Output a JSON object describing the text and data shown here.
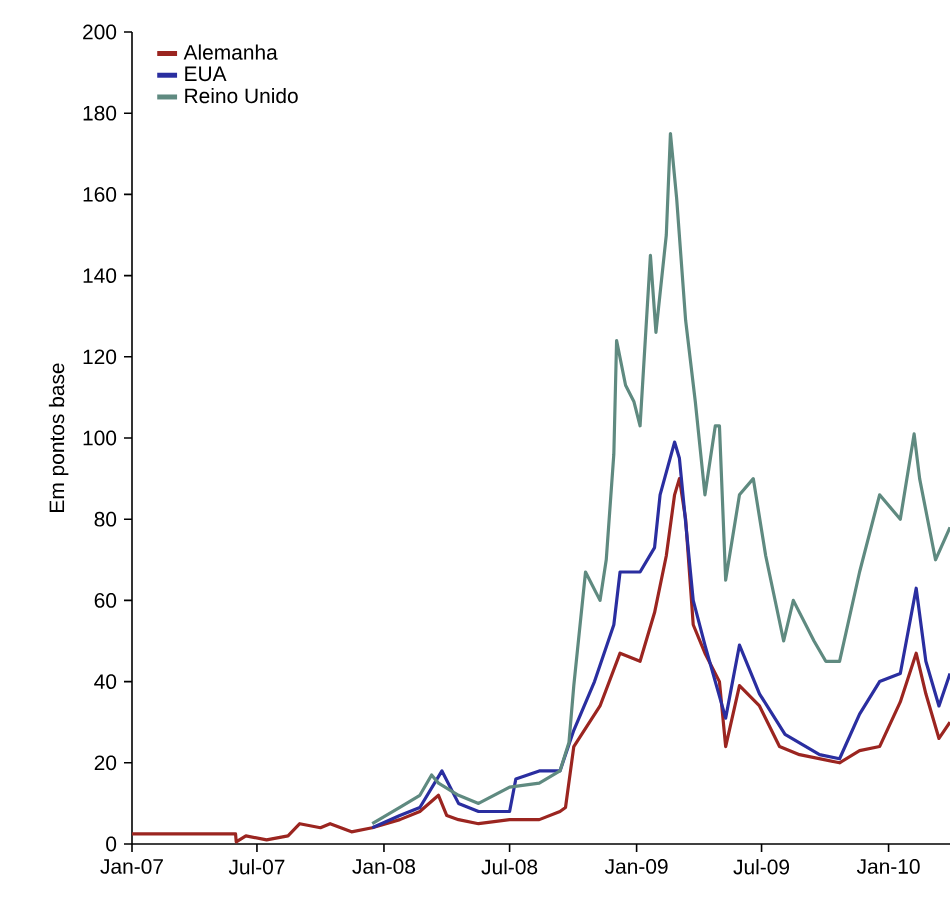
{
  "chart_data": {
    "type": "line",
    "ylabel": "Em pontos base",
    "xlim": [
      "2007-01-01",
      "2010-03-31"
    ],
    "ylim": [
      0,
      200
    ],
    "yticks": [
      0,
      20,
      40,
      60,
      80,
      100,
      120,
      140,
      160,
      180,
      200
    ],
    "xticks": [
      {
        "value": "2007-01-01",
        "label": "Jan-07"
      },
      {
        "value": "2007-07-01",
        "label": "Jul-07"
      },
      {
        "value": "2008-01-01",
        "label": "Jan-08"
      },
      {
        "value": "2008-07-01",
        "label": "Jul-08"
      },
      {
        "value": "2009-01-01",
        "label": "Jan-09"
      },
      {
        "value": "2009-07-01",
        "label": "Jul-09"
      },
      {
        "value": "2010-01-01",
        "label": "Jan-10"
      }
    ],
    "grid": false,
    "legend": "top left",
    "marker": "none",
    "line_style": "solid",
    "series": [
      {
        "name": "Alemanha",
        "color": "#9b2520",
        "x": [
          "2007-01-01",
          "2007-05-31",
          "2007-06-01",
          "2007-06-15",
          "2007-07-15",
          "2007-08-15",
          "2007-09-01",
          "2007-10-01",
          "2007-10-15",
          "2007-11-15",
          "2007-12-15",
          "2008-01-24",
          "2008-02-22",
          "2008-03-20",
          "2008-04-01",
          "2008-04-18",
          "2008-05-17",
          "2008-07-01",
          "2008-08-13",
          "2008-09-12",
          "2008-09-20",
          "2008-10-02",
          "2008-11-09",
          "2008-12-08",
          "2009-01-06",
          "2009-01-27",
          "2009-02-13",
          "2009-02-25",
          "2009-03-04",
          "2009-03-13",
          "2009-03-24",
          "2009-04-10",
          "2009-05-01",
          "2009-05-10",
          "2009-05-30",
          "2009-06-28",
          "2009-07-27",
          "2009-08-25",
          "2009-10-22",
          "2009-11-20",
          "2009-12-19",
          "2010-01-18",
          "2010-02-10",
          "2010-02-24",
          "2010-03-15",
          "2010-03-31"
        ],
        "values": [
          2.5,
          2.5,
          0.5,
          2,
          1,
          2,
          5,
          4,
          5,
          3,
          4,
          6,
          8,
          12,
          7,
          6,
          5,
          6,
          6,
          8,
          9,
          24,
          34,
          47,
          45,
          57,
          71,
          86,
          90,
          80,
          54,
          47,
          40,
          24,
          39,
          34,
          24,
          22,
          20,
          23,
          24,
          35,
          47,
          37,
          26,
          30
        ]
      },
      {
        "name": "EUA",
        "color": "#2a2ea0",
        "x": [
          "2007-12-15",
          "2008-01-24",
          "2008-02-22",
          "2008-03-25",
          "2008-04-18",
          "2008-05-17",
          "2008-07-01",
          "2008-07-10",
          "2008-08-13",
          "2008-09-12",
          "2008-10-02",
          "2008-11-01",
          "2008-11-29",
          "2008-12-08",
          "2009-01-06",
          "2009-01-27",
          "2009-02-04",
          "2009-02-25",
          "2009-03-04",
          "2009-03-24",
          "2009-04-10",
          "2009-05-10",
          "2009-05-30",
          "2009-06-28",
          "2009-08-04",
          "2009-09-23",
          "2009-10-22",
          "2009-11-20",
          "2009-12-19",
          "2010-01-18",
          "2010-02-10",
          "2010-02-24",
          "2010-03-15",
          "2010-03-31"
        ],
        "values": [
          4,
          7,
          9,
          18,
          10,
          8,
          8,
          16,
          18,
          18,
          28,
          40,
          54,
          67,
          67,
          73,
          86,
          99,
          95,
          60,
          49,
          31,
          49,
          37,
          27,
          22,
          21,
          32,
          40,
          42,
          63,
          45,
          34,
          42
        ]
      },
      {
        "name": "Reino Unido",
        "color": "#5f8a80",
        "x": [
          "2007-12-15",
          "2008-01-24",
          "2008-02-22",
          "2008-03-10",
          "2008-03-20",
          "2008-04-18",
          "2008-05-17",
          "2008-07-01",
          "2008-08-13",
          "2008-09-12",
          "2008-09-25",
          "2008-10-02",
          "2008-10-19",
          "2008-11-09",
          "2008-11-18",
          "2008-11-29",
          "2008-12-03",
          "2008-12-16",
          "2008-12-28",
          "2009-01-06",
          "2009-01-21",
          "2009-01-29",
          "2009-02-13",
          "2009-02-19",
          "2009-02-28",
          "2009-03-13",
          "2009-03-27",
          "2009-04-10",
          "2009-04-25",
          "2009-05-01",
          "2009-05-10",
          "2009-05-30",
          "2009-06-19",
          "2009-07-07",
          "2009-08-02",
          "2009-08-16",
          "2009-09-15",
          "2009-10-02",
          "2009-10-22",
          "2009-11-20",
          "2009-12-19",
          "2010-01-18",
          "2010-02-07",
          "2010-02-15",
          "2010-03-10",
          "2010-03-31"
        ],
        "values": [
          5,
          9,
          12,
          17,
          15,
          12,
          10,
          14,
          15,
          18,
          25,
          39,
          67,
          60,
          70,
          96,
          124,
          113,
          109,
          103,
          145,
          126,
          150,
          175,
          159,
          129,
          109,
          86,
          103,
          103,
          65,
          86,
          90,
          71,
          50,
          60,
          50,
          45,
          45,
          67,
          86,
          80,
          101,
          90,
          70,
          78
        ]
      }
    ]
  }
}
